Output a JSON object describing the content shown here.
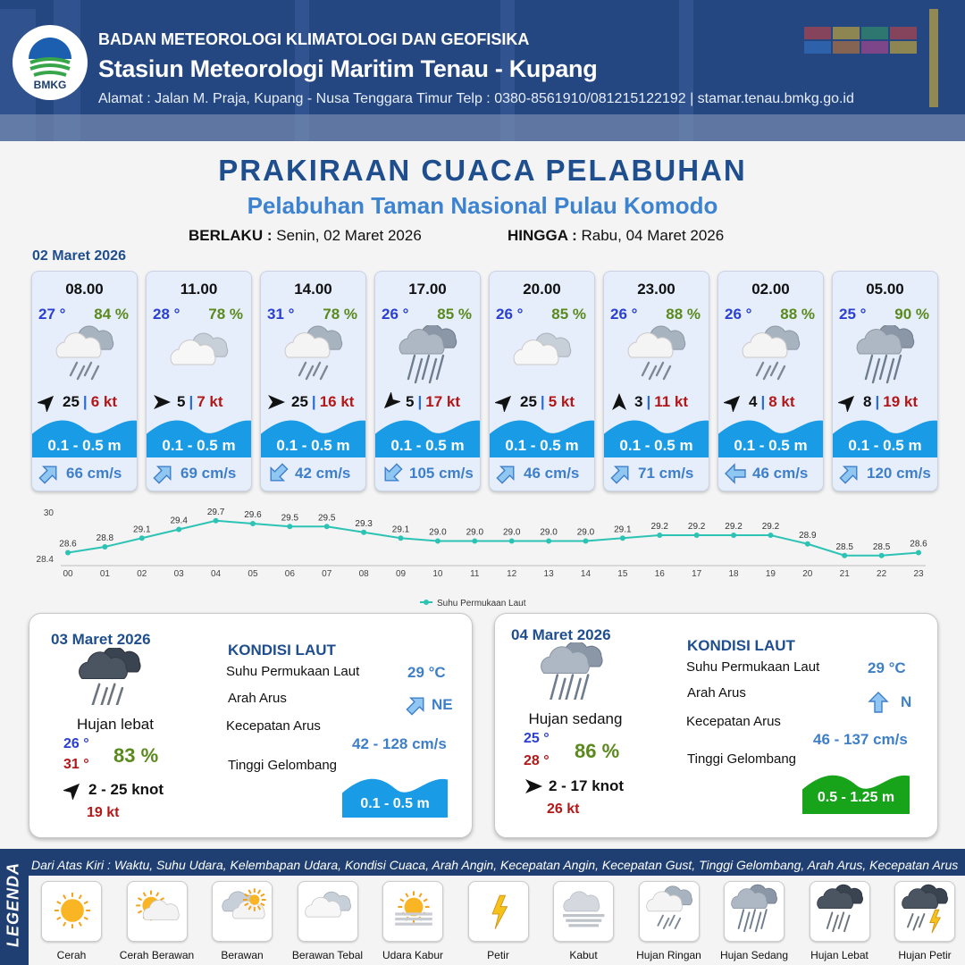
{
  "header": {
    "logo_text": "BMKG",
    "agency": "BADAN METEOROLOGI KLIMATOLOGI DAN GEOFISIKA",
    "station": "Stasiun Meteorologi Maritim Tenau - Kupang",
    "address": "Alamat : Jalan M. Praja, Kupang - Nusa Tenggara Timur Telp : 0380-8561910/081215122192  | stamar.tenau.bmkg.go.id"
  },
  "title": "PRAKIRAAN CUACA PELABUHAN",
  "subtitle": "Pelabuhan Taman Nasional Pulau Komodo",
  "validity": {
    "from_label": "BERLAKU :",
    "from_value": "Senin, 02 Maret 2026",
    "to_label": "HINGGA :",
    "to_value": "Rabu, 04 Maret 2026"
  },
  "day1_date": "02 Maret 2026",
  "hourly": [
    {
      "time": "08.00",
      "temp": "27 °",
      "hum": "84 %",
      "icon": "hujan-ringan-icon",
      "wind_dir": "NE",
      "wind": "25",
      "gust": "6 kt",
      "wave": "0.1 - 0.5 m",
      "cur_dir": "NE",
      "cur": "66 cm/s"
    },
    {
      "time": "11.00",
      "temp": "28 °",
      "hum": "78 %",
      "icon": "berawan-tebal-icon",
      "wind_dir": "E",
      "wind": "5",
      "gust": "7 kt",
      "wave": "0.1 - 0.5 m",
      "cur_dir": "NE",
      "cur": "69 cm/s"
    },
    {
      "time": "14.00",
      "temp": "31 °",
      "hum": "78 %",
      "icon": "hujan-ringan-icon",
      "wind_dir": "E",
      "wind": "25",
      "gust": "16 kt",
      "wave": "0.1 - 0.5 m",
      "cur_dir": "SW",
      "cur": "42 cm/s"
    },
    {
      "time": "17.00",
      "temp": "26 °",
      "hum": "85 %",
      "icon": "hujan-sedang-icon",
      "wind_dir": "SW",
      "wind": "5",
      "gust": "17 kt",
      "wave": "0.1 - 0.5 m",
      "cur_dir": "SW",
      "cur": "105 cm/s"
    },
    {
      "time": "20.00",
      "temp": "26 °",
      "hum": "85 %",
      "icon": "berawan-tebal-icon",
      "wind_dir": "NE",
      "wind": "25",
      "gust": "5 kt",
      "wave": "0.1 - 0.5 m",
      "cur_dir": "NE",
      "cur": "46 cm/s"
    },
    {
      "time": "23.00",
      "temp": "26 °",
      "hum": "88 %",
      "icon": "hujan-ringan-icon",
      "wind_dir": "N",
      "wind": "3",
      "gust": "11 kt",
      "wave": "0.1 - 0.5 m",
      "cur_dir": "NE",
      "cur": "71 cm/s"
    },
    {
      "time": "02.00",
      "temp": "26 °",
      "hum": "88 %",
      "icon": "hujan-ringan-icon",
      "wind_dir": "NE",
      "wind": "4",
      "gust": "8 kt",
      "wave": "0.1 - 0.5 m",
      "cur_dir": "W",
      "cur": "46 cm/s"
    },
    {
      "time": "05.00",
      "temp": "25 °",
      "hum": "90 %",
      "icon": "hujan-sedang-icon",
      "wind_dir": "NE",
      "wind": "8",
      "gust": "19 kt",
      "wave": "0.1 - 0.5 m",
      "cur_dir": "NE",
      "cur": "120 cm/s"
    }
  ],
  "chart_data": {
    "type": "line",
    "title": "",
    "xlabel": "",
    "ylabel": "",
    "x": [
      "00",
      "01",
      "02",
      "03",
      "04",
      "05",
      "06",
      "07",
      "08",
      "09",
      "10",
      "11",
      "12",
      "13",
      "14",
      "15",
      "16",
      "17",
      "18",
      "19",
      "20",
      "21",
      "22",
      "23"
    ],
    "series": [
      {
        "name": "Suhu Permukaan Laut",
        "values": [
          28.6,
          28.8,
          29.1,
          29.4,
          29.7,
          29.6,
          29.5,
          29.5,
          29.3,
          29.1,
          29.0,
          29.0,
          29.0,
          29.0,
          29.0,
          29.1,
          29.2,
          29.2,
          29.2,
          29.2,
          28.9,
          28.5,
          28.5,
          28.6
        ]
      }
    ],
    "ylim": [
      28.4,
      30
    ],
    "yticks": [
      "30",
      "28.4"
    ],
    "color": "#2cc3b5",
    "legend": "bottom-center",
    "grid": false
  },
  "day2": {
    "date": "03 Maret 2026",
    "icon": "hujan-lebat-icon",
    "condition": "Hujan lebat",
    "tmin": "26 °",
    "tmax": "31 °",
    "hum": "83 %",
    "wind_dir": "NE",
    "wind": "2  - 25 knot",
    "gust": "19 kt",
    "sea_title": "KONDISI LAUT",
    "sst_label": "Suhu Permukaan Laut",
    "sst": "29 °C",
    "cur_dir_label": "Arah Arus",
    "cur_dir": "NE",
    "cur_speed_label": "Kecepatan Arus",
    "cur_speed": "42 - 128 cm/s",
    "wave_label": "Tinggi Gelombang",
    "wave": "0.1 - 0.5 m",
    "wave_color": "#1a9be6"
  },
  "day3": {
    "date": "04 Maret 2026",
    "icon": "hujan-sedang-icon",
    "condition": "Hujan sedang",
    "tmin": "25 °",
    "tmax": "28 °",
    "hum": "86 %",
    "wind_dir": "E",
    "wind": "2  - 17 knot",
    "gust": "26 kt",
    "sea_title": "KONDISI LAUT",
    "sst_label": "Suhu Permukaan Laut",
    "sst": "29 °C",
    "cur_dir_label": "Arah Arus",
    "cur_dir": "N",
    "cur_speed_label": "Kecepatan Arus",
    "cur_speed": "46 - 137 cm/s",
    "wave_label": "Tinggi Gelombang",
    "wave": "0.5 - 1.25 m",
    "wave_color": "#17a31a"
  },
  "legend": {
    "title": "LEGENDA",
    "description": "Dari Atas Kiri : Waktu, Suhu Udara, Kelembapan Udara, Kondisi Cuaca, Arah Angin, Kecepatan Angin, Kecepatan Gust, Tinggi Gelombang, Arah Arus, Kecepatan Arus",
    "items": [
      {
        "label": "Cerah",
        "icon": "cerah-icon"
      },
      {
        "label": "Cerah Berawan",
        "icon": "cerah-berawan-icon"
      },
      {
        "label": "Berawan",
        "icon": "berawan-icon"
      },
      {
        "label": "Berawan Tebal",
        "icon": "berawan-tebal-icon"
      },
      {
        "label": "Udara Kabur",
        "icon": "udara-kabur-icon"
      },
      {
        "label": "Petir",
        "icon": "petir-icon"
      },
      {
        "label": "Kabut",
        "icon": "kabut-icon"
      },
      {
        "label": "Hujan Ringan",
        "icon": "hujan-ringan-icon"
      },
      {
        "label": "Hujan Sedang",
        "icon": "hujan-sedang-icon"
      },
      {
        "label": "Hujan Lebat",
        "icon": "hujan-lebat-icon"
      },
      {
        "label": "Hujan Petir",
        "icon": "hujan-petir-icon"
      }
    ]
  },
  "colors": {
    "primary": "#1f4e8f",
    "accent": "#3d83d0",
    "temp": "#2a3fd4",
    "humidity": "#5a8a1d",
    "gust": "#b41717",
    "wave": "#1a9be6"
  }
}
